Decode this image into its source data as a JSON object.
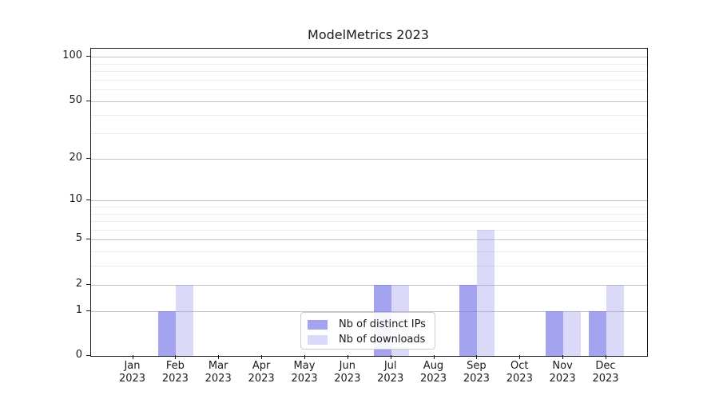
{
  "chart_data": {
    "type": "bar",
    "title": "ModelMetrics 2023",
    "categories": [
      "Jan",
      "Feb",
      "Mar",
      "Apr",
      "May",
      "Jun",
      "Jul",
      "Aug",
      "Sep",
      "Oct",
      "Nov",
      "Dec"
    ],
    "category_year": "2023",
    "series": [
      {
        "name": "Nb of distinct IPs",
        "color": "rgba(110,110,230,0.63)",
        "values": [
          0,
          1,
          0,
          0,
          0,
          0,
          2,
          0,
          2,
          0,
          1,
          1
        ]
      },
      {
        "name": "Nb of downloads",
        "color": "rgba(150,150,235,0.35)",
        "values": [
          0,
          2,
          0,
          0,
          0,
          0,
          2,
          0,
          6,
          0,
          1,
          2
        ]
      }
    ],
    "yscale": "log1p",
    "y_major_ticks": [
      0,
      1,
      2,
      5,
      10,
      20,
      50,
      100
    ],
    "y_minor_gridlines": [
      3,
      4,
      6,
      7,
      8,
      9,
      30,
      40,
      60,
      70,
      80,
      90
    ],
    "ylim": [
      0,
      113
    ],
    "grid": true,
    "legend_position": "lower center"
  },
  "colors": {
    "major_grid": "#c3c3c3",
    "minor_grid": "#ececec",
    "axis": "#1a1a1a",
    "legend_border": "#cccccc"
  }
}
